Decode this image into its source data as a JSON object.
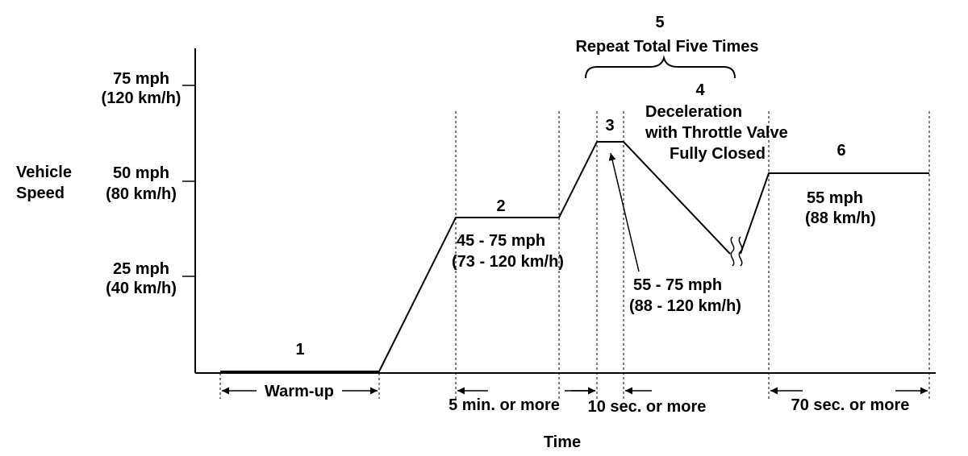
{
  "axes": {
    "y_label_line1": "Vehicle",
    "y_label_line2": "Speed",
    "x_label": "Time",
    "ticks": [
      {
        "mph": "75 mph",
        "kmh": "(120 km/h)"
      },
      {
        "mph": "50 mph",
        "kmh": "(80 km/h)"
      },
      {
        "mph": "25 mph",
        "kmh": "(40 km/h)"
      }
    ]
  },
  "steps": {
    "s1": "1",
    "s2": "2",
    "s3": "3",
    "s4": "4",
    "s5": "5",
    "s6": "6"
  },
  "annotations": {
    "repeat": "Repeat Total Five Times",
    "decel_line1": "Deceleration",
    "decel_line2": "with Throttle Valve",
    "decel_line3": "Fully Closed",
    "range2_mph": "45 - 75 mph",
    "range2_kmh": "(73 - 120 km/h)",
    "range3_mph": "55 - 75 mph",
    "range3_kmh": "(88 - 120 km/h)",
    "speed6_mph": "55 mph",
    "speed6_kmh": "(88 km/h)"
  },
  "durations": {
    "warmup": "Warm-up",
    "d2": "5 min. or more",
    "d3": "10 sec. or more",
    "d6": "70 sec. or more"
  },
  "colors": {
    "stroke": "#000000",
    "background": "#ffffff"
  }
}
